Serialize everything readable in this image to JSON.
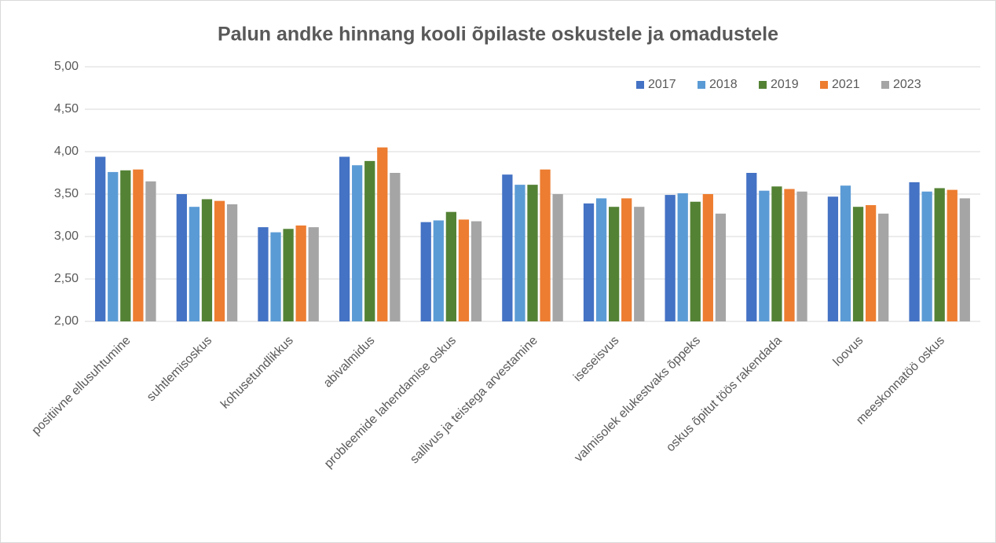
{
  "chart_data": {
    "type": "bar",
    "title": "Palun andke hinnang kooli õpilaste oskustele ja omadustele",
    "categories": [
      "positiivne ellusuhtumine",
      "suhtlemisoskus",
      "kohusetundlikkus",
      "abivalmidus",
      "probleemide lahendamise oskus",
      "sallivus ja teistega arvestamine",
      "iseseisvus",
      "valmisolek elukestvaks õppeks",
      "oskus õpitut töös rakendada",
      "loovus",
      "meeskonnatöö oskus"
    ],
    "series": [
      {
        "name": "2017",
        "color": "#4472c4",
        "values": [
          3.94,
          3.5,
          3.11,
          3.94,
          3.17,
          3.73,
          3.39,
          3.49,
          3.75,
          3.47,
          3.64
        ]
      },
      {
        "name": "2018",
        "color": "#5b9bd5",
        "values": [
          3.76,
          3.35,
          3.05,
          3.84,
          3.19,
          3.61,
          3.45,
          3.51,
          3.54,
          3.6,
          3.53
        ]
      },
      {
        "name": "2019",
        "color": "#548235",
        "values": [
          3.78,
          3.44,
          3.09,
          3.89,
          3.29,
          3.61,
          3.35,
          3.41,
          3.59,
          3.35,
          3.57
        ]
      },
      {
        "name": "2021",
        "color": "#ed7d31",
        "values": [
          3.79,
          3.42,
          3.13,
          4.05,
          3.2,
          3.79,
          3.45,
          3.5,
          3.56,
          3.37,
          3.55
        ]
      },
      {
        "name": "2023",
        "color": "#a5a5a5",
        "values": [
          3.65,
          3.38,
          3.11,
          3.75,
          3.18,
          3.5,
          3.35,
          3.27,
          3.53,
          3.27,
          3.45
        ]
      }
    ],
    "ylim": [
      2,
      5
    ],
    "yticks": [
      {
        "value": 2,
        "label": "2,00"
      },
      {
        "value": 2.5,
        "label": "2,50"
      },
      {
        "value": 3,
        "label": "3,00"
      },
      {
        "value": 3.5,
        "label": "3,50"
      },
      {
        "value": 4,
        "label": "4,00"
      },
      {
        "value": 4.5,
        "label": "4,50"
      },
      {
        "value": 5,
        "label": "5,00"
      }
    ],
    "grid": true,
    "legend": "top-right"
  }
}
